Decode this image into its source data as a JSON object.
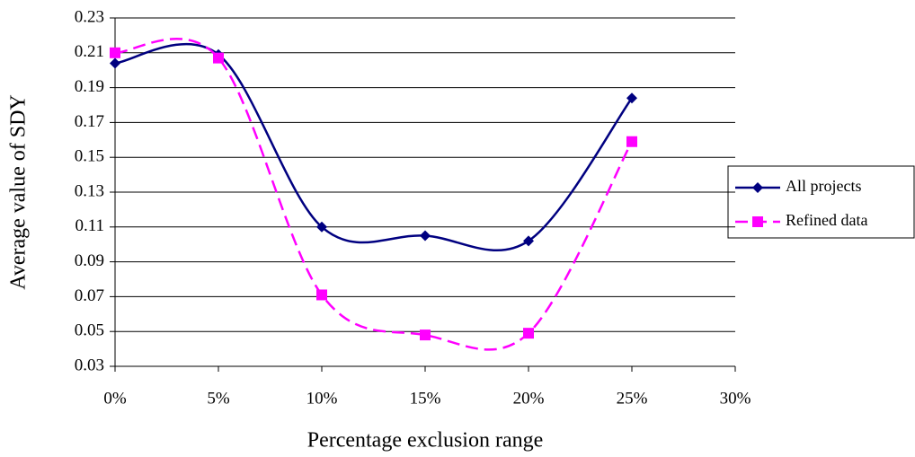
{
  "chart_data": {
    "type": "line",
    "x_label": "Percentage exclusion range",
    "y_label": "Average value of SDY",
    "x": [
      0,
      5,
      10,
      15,
      20,
      25
    ],
    "series": [
      {
        "name": "All projects",
        "color": "#000080",
        "line_style": "solid",
        "marker": "diamond",
        "values": [
          0.204,
          0.209,
          0.11,
          0.105,
          0.102,
          0.184
        ]
      },
      {
        "name": "Refined data",
        "color": "#ff00ff",
        "line_style": "dashed",
        "marker": "square",
        "values": [
          0.21,
          0.207,
          0.071,
          0.048,
          0.049,
          0.159
        ]
      }
    ],
    "smooth": true,
    "xlim": [
      0,
      30
    ],
    "xticks": [
      {
        "value": 0,
        "label": "0%"
      },
      {
        "value": 5,
        "label": "5%"
      },
      {
        "value": 10,
        "label": "10%"
      },
      {
        "value": 15,
        "label": "15%"
      },
      {
        "value": 20,
        "label": "20%"
      },
      {
        "value": 25,
        "label": "25%"
      },
      {
        "value": 30,
        "label": "30%"
      }
    ],
    "ylim": [
      0.03,
      0.23
    ],
    "yticks": [
      0.03,
      0.05,
      0.07,
      0.09,
      0.11,
      0.13,
      0.15,
      0.17,
      0.19,
      0.21,
      0.23
    ],
    "grid": true,
    "legend": "right"
  }
}
